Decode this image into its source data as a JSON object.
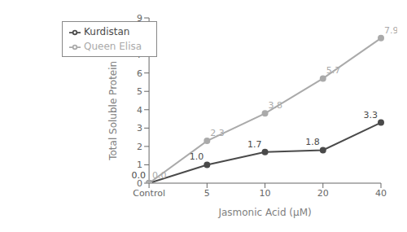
{
  "chart_data": {
    "type": "line",
    "categories": [
      "Control",
      "5",
      "10",
      "20",
      "40"
    ],
    "series": [
      {
        "name": "Kurdistan",
        "color": "#4a4a4a",
        "marker": "circle",
        "values": [
          0.0,
          1.0,
          1.7,
          1.8,
          3.3
        ],
        "value_labels": [
          "0.0",
          "1.0",
          "1.7",
          "1.8",
          "3.3"
        ]
      },
      {
        "name": "Queen Elisa",
        "color": "#aaaaaa",
        "marker": "circle",
        "values": [
          0.0,
          2.3,
          3.8,
          5.7,
          7.9
        ],
        "value_labels": [
          "0.0",
          "2.3",
          "3.8",
          "5.7",
          "7.9"
        ]
      }
    ],
    "xlabel": "Jasmonic Acid (μM)",
    "ylabel": "Total Soluble Protein (%)",
    "ylim": [
      0,
      9
    ],
    "yticks": [
      0,
      1,
      2,
      3,
      4,
      5,
      6,
      7,
      8,
      9
    ],
    "grid": false,
    "legend": "upper left",
    "data_labels": true
  }
}
